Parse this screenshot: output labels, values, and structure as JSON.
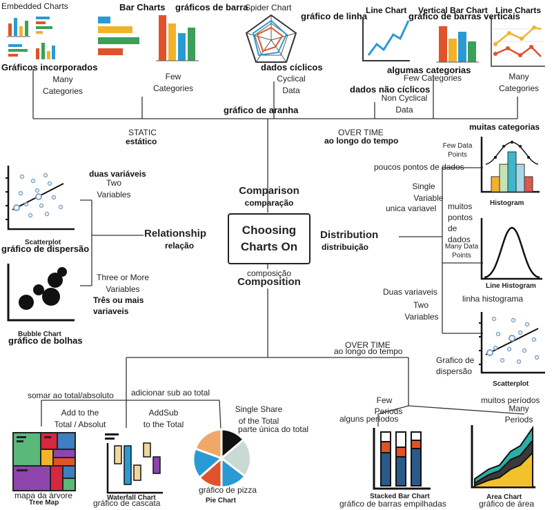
{
  "center": {
    "line1": "Choosing",
    "line2": "Charts On"
  },
  "branches": {
    "comparison": {
      "en": "Comparison",
      "pt": "comparação"
    },
    "relationship": {
      "en": "Relationship",
      "pt": "relação"
    },
    "distribution": {
      "en": "Distribution",
      "pt": "distribuição"
    },
    "composition": {
      "en": "Composition",
      "pt": "composição"
    }
  },
  "comparison": {
    "static_en": "STATIC",
    "static_pt": "estático",
    "overtime_en": "OVER TIME",
    "overtime_pt": "ao longo do tempo",
    "spider_pt": "gráfico de aranha",
    "embedded": {
      "title": "Embedded Charts",
      "pt": "Gráficos incorporados",
      "l1": "Many",
      "l2": "Categories"
    },
    "bar": {
      "title": "Bar Charts",
      "pt": "gráficos de barra",
      "l1": "Few",
      "l2": "Categories"
    },
    "spider": {
      "title": "Spider Chart",
      "pt": "dados cíclicos",
      "l1": "Cyclical",
      "l2": "Data"
    },
    "line": {
      "title": "Line Chart",
      "pt": "gráfico de linha",
      "pt2": "dados não cíclicos",
      "l1": "Non Cyclical",
      "l2": "Data"
    },
    "vbar": {
      "title": "Vertical Bar Chart",
      "pt": "gráfico de barras verticais",
      "pt2": "algumas categorias",
      "l1": "Few Categories"
    },
    "lines": {
      "title": "Line Charts",
      "l1": "Many",
      "l2": "Categories",
      "pt": "muitas categorias"
    }
  },
  "relationship": {
    "two_pt": "duas variáveis",
    "two_l1": "Two",
    "two_l2": "Variables",
    "three_l1": "Three or More",
    "three_l2": "Variables",
    "three_pt1": "Três ou mais",
    "three_pt2": "variaveis",
    "scatter_cap": "Scatterplot",
    "scatter_pt": "gráfico de dispersão",
    "bubble_cap": "Bubble Chart",
    "bubble_pt": "gráfico de bolhas"
  },
  "distribution": {
    "fewpts_l1": "Few Data",
    "fewpts_l2": "Points",
    "fewpts_pt": "poucos pontos de dados",
    "single_l1": "Single",
    "single_l2": "Variable",
    "single_pt": "unica variavel",
    "many_pt1": "muitos",
    "many_pt2": "pontos",
    "many_pt3": "de",
    "many_pt4": "dados",
    "many_l1": "Many Data",
    "many_l2": "Points",
    "hist_cap": "Histogram",
    "linehist_cap": "Line Histogram",
    "linehist_pt": "linha histograma",
    "two_pt": "Duas variaveis",
    "two_l1": "Two",
    "two_l2": "Variables",
    "scatter_pt1": "Grafico de",
    "scatter_pt2": "dispersão",
    "scatter_cap": "Scatterplot"
  },
  "composition": {
    "overtime_en": "OVER TIME",
    "overtime_pt": "ao longo do tempo",
    "sum_pt": "somar ao total/absoluto",
    "add_l1": "Add to the",
    "add_l2": "Total / Absolut",
    "addsub_pt": "adicionar sub ao total",
    "addsub_l1": "AddSub",
    "addsub_l2": "to the Total",
    "share_l1": "Single Share",
    "share_l2": "of the Total",
    "share_pt": "parte única do total",
    "few_l1": "Few",
    "few_l2": "Periods",
    "few_pt": "alguns períodos",
    "many_pt": "muitos períodos",
    "many_l1": "Many",
    "many_l2": "Periods",
    "tree_pt": "mapa da árvore",
    "tree_cap": "Tree Map",
    "waterfall_cap": "Waterfall Chart",
    "waterfall_pt": "gráfico de cascata",
    "pie_pt": "gráfico de pizza",
    "pie_cap": "Pie Chart",
    "stacked_cap": "Stacked Bar Chart",
    "stacked_pt": "gráfico de barras empilhadas",
    "area_cap": "Area Chart",
    "area_pt": "gráfico de área"
  }
}
